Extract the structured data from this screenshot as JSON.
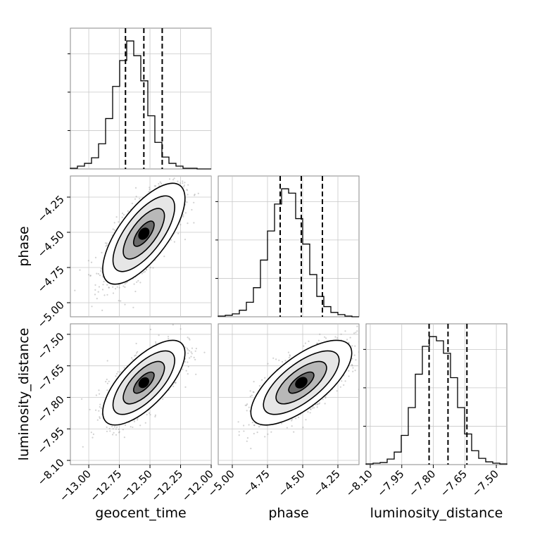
{
  "chart_data": {
    "type": "corner",
    "parameters": [
      {
        "name": "geocent_time",
        "mean": -12.55,
        "std": 0.15,
        "quantiles": [
          -12.7,
          -12.55,
          -12.4
        ],
        "range": [
          -13.15,
          -12.0
        ],
        "ticks": [
          -13.0,
          -12.75,
          -12.5,
          -12.25,
          -12.0
        ],
        "tick_labels": [
          "−13.00",
          "−12.75",
          "−12.50",
          "−12.25",
          "−12.00"
        ]
      },
      {
        "name": "phase",
        "mean": -4.51,
        "std": 0.16,
        "quantiles": [
          -4.66,
          -4.51,
          -4.36
        ],
        "range": [
          -5.1,
          -4.1
        ],
        "ticks": [
          -5.0,
          -4.75,
          -4.5,
          -4.25
        ],
        "tick_labels": [
          "−5.00",
          "−4.75",
          "−4.50",
          "−4.25"
        ]
      },
      {
        "name": "luminosity_distance",
        "mean": -7.73,
        "std": 0.09,
        "quantiles": [
          -7.82,
          -7.73,
          -7.64
        ],
        "range": [
          -8.12,
          -7.45
        ],
        "ticks": [
          -8.1,
          -7.95,
          -7.8,
          -7.65,
          -7.5
        ],
        "tick_labels": [
          "−8.10",
          "−7.95",
          "−7.80",
          "−7.65",
          "−7.50"
        ]
      }
    ],
    "histograms": [
      {
        "param": "geocent_time",
        "bins": 20,
        "range": [
          -13.15,
          -12.0
        ],
        "counts": [
          1,
          4,
          8,
          16,
          36,
          72,
          118,
          155,
          183,
          162,
          126,
          76,
          38,
          17,
          8,
          4,
          1,
          1,
          0,
          0
        ]
      },
      {
        "param": "phase",
        "bins": 20,
        "range": [
          -5.1,
          -4.1
        ],
        "counts": [
          1,
          2,
          4,
          9,
          20,
          40,
          78,
          118,
          155,
          176,
          170,
          135,
          100,
          58,
          28,
          14,
          6,
          3,
          1,
          0
        ]
      },
      {
        "param": "luminosity_distance",
        "bins": 20,
        "range": [
          -8.12,
          -7.45
        ],
        "counts": [
          1,
          2,
          3,
          8,
          18,
          42,
          82,
          130,
          170,
          184,
          178,
          160,
          125,
          82,
          44,
          20,
          9,
          4,
          2,
          1
        ]
      }
    ],
    "scatter": {
      "samples": 4000,
      "correlation": 0.7,
      "levels_sigma": [
        0.5,
        1.0,
        1.5,
        2.0
      ]
    },
    "grid": true,
    "quantile_lines": "dashed"
  }
}
